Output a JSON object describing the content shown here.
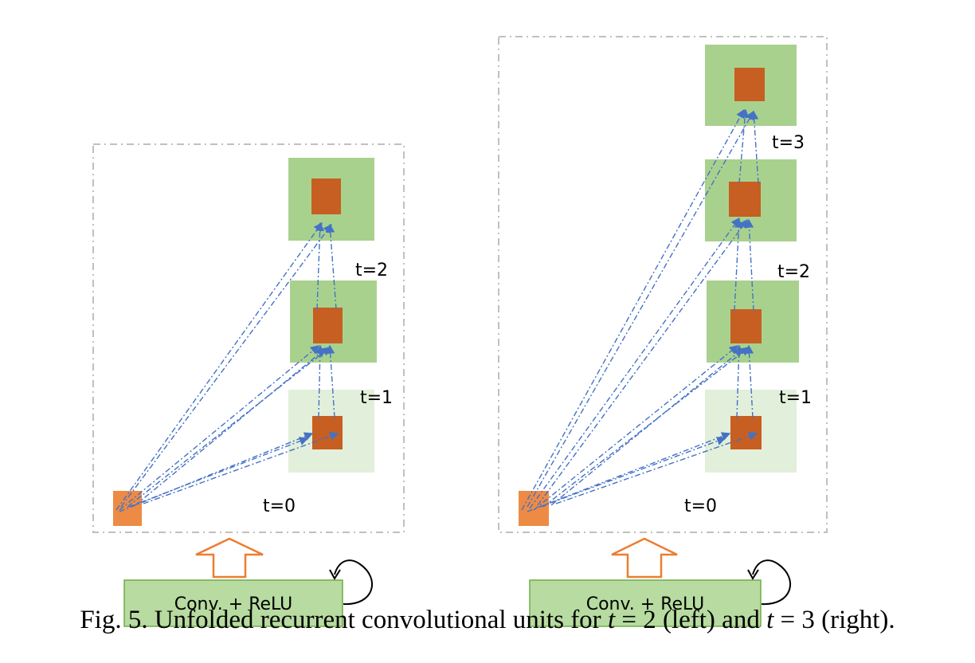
{
  "panels": [
    {
      "name": "left",
      "time_labels": [
        "t=0",
        "t=1",
        "t=2"
      ],
      "block_label": "Conv. + ReLU"
    },
    {
      "name": "right",
      "time_labels": [
        "t=0",
        "t=1",
        "t=2",
        "t=3"
      ],
      "block_label": "Conv. + ReLU"
    }
  ],
  "caption": {
    "prefix": "Fig. 5. Unfolded recurrent convolutional units for ",
    "var1": "t",
    "mid1": " = 2 (left) and ",
    "var2": "t",
    "mid2": " = 3 (right)."
  },
  "colors": {
    "input_unit": "#ed8b45",
    "unit": "#c65f21",
    "green_block": "#a9d18e",
    "light_green_block": "#e2efda",
    "conv_block": "#b7dba0",
    "arrow": "#4472c4",
    "frame": "#c0c0c0"
  }
}
